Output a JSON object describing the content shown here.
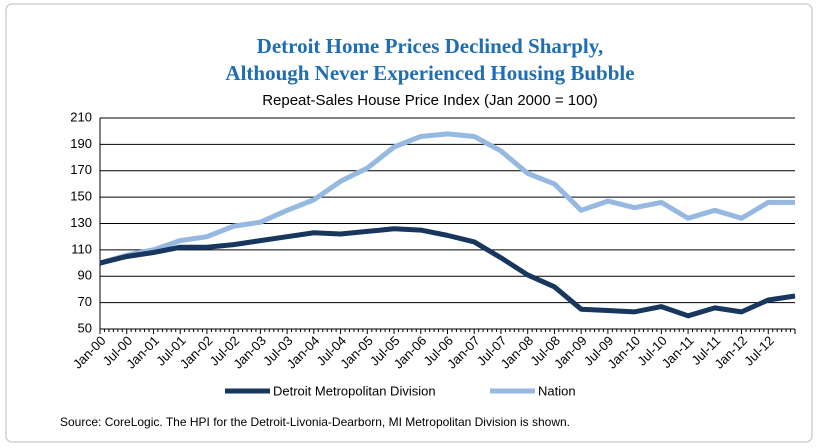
{
  "chart_data": {
    "type": "line",
    "title": "Detroit Home Prices Declined Sharply,",
    "title_line2": "Although Never Experienced Housing Bubble",
    "subtitle": "Repeat-Sales House Price Index  (Jan 2000 = 100)",
    "source": "Source: CoreLogic.  The HPI for the Detroit-Livonia-Dearborn, MI Metropolitan Division is shown.",
    "categories": [
      "Jan-00",
      "Jul-00",
      "Jan-01",
      "Jul-01",
      "Jan-02",
      "Jul-02",
      "Jan-03",
      "Jul-03",
      "Jan-04",
      "Jul-04",
      "Jan-05",
      "Jul-05",
      "Jan-06",
      "Jul-06",
      "Jan-07",
      "Jul-07",
      "Jan-08",
      "Jul-08",
      "Jan-09",
      "Jul-09",
      "Jan-10",
      "Jul-10",
      "Jan-11",
      "Jul-11",
      "Jan-12",
      "Jul-12",
      null
    ],
    "series": [
      {
        "name": "Detroit Metropolitan Division",
        "color": "#17375e",
        "width": 5,
        "values": [
          100,
          105,
          108,
          112,
          112,
          114,
          117,
          120,
          123,
          122,
          124,
          126,
          125,
          121,
          116,
          104,
          91,
          82,
          65,
          64,
          63,
          67,
          60,
          66,
          63,
          72,
          75
        ]
      },
      {
        "name": "Nation",
        "color": "#95b9e0",
        "width": 5,
        "values": [
          100,
          106,
          110,
          117,
          120,
          128,
          131,
          140,
          148,
          162,
          172,
          188,
          196,
          198,
          196,
          185,
          168,
          160,
          140,
          147,
          142,
          146,
          134,
          140,
          134,
          146,
          146
        ]
      }
    ],
    "ylim": [
      50,
      210
    ],
    "yticks": [
      50,
      70,
      90,
      110,
      130,
      150,
      170,
      190,
      210
    ],
    "grid": true
  }
}
